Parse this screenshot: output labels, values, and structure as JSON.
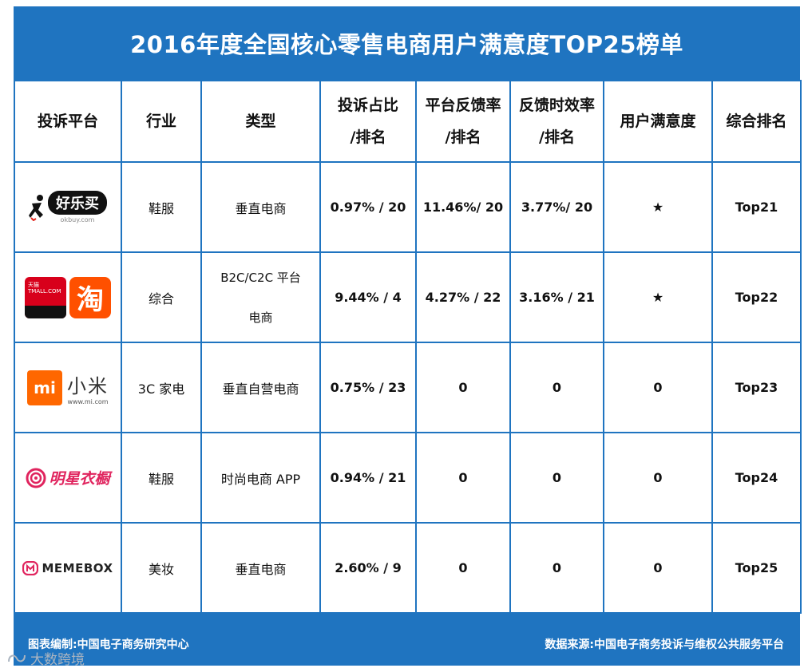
{
  "title": "2016年度全国核心零售电商用户满意度TOP25榜单",
  "headers": {
    "platform": "投诉平台",
    "industry": "行业",
    "type": "类型",
    "complaint_l1": "投诉占比",
    "complaint_l2": "/排名",
    "feedback_l1": "平台反馈率",
    "feedback_l2": "/排名",
    "timeliness_l1": "反馈时效率",
    "timeliness_l2": "/排名",
    "satisfaction": "用户满意度",
    "rank": "综合排名"
  },
  "rows": [
    {
      "logo_text": "好乐买",
      "logo_sub": "okbuy.com",
      "industry": "鞋服",
      "type": "垂直电商",
      "complaint": "0.97% /  20",
      "feedback": "11.46%/ 20",
      "timeliness": "3.77%/  20",
      "satisfaction": "★",
      "rank": "Top21"
    },
    {
      "logo_text": "淘",
      "logo_sub": "天猫 TMALL.COM",
      "industry": "综合",
      "type_l1": "B2C/C2C 平台",
      "type_l2": "电商",
      "complaint": "9.44%  /  4",
      "feedback": "4.27% / 22",
      "timeliness": "3.16% / 21",
      "satisfaction": "★",
      "rank": "Top22"
    },
    {
      "logo_text": "小米",
      "logo_mark": "mi",
      "logo_sub": "www.mi.com",
      "industry": "3C 家电",
      "type": "垂直自营电商",
      "complaint": "0.75% / 23",
      "feedback": "0",
      "timeliness": "0",
      "satisfaction": "0",
      "rank": "Top23"
    },
    {
      "logo_text": "明星衣橱",
      "industry": "鞋服",
      "type": "时尚电商 APP",
      "complaint": "0.94% / 21",
      "feedback": "0",
      "timeliness": "0",
      "satisfaction": "0",
      "rank": "Top24"
    },
    {
      "logo_text": "MEMEBOX",
      "industry": "美妆",
      "type": "垂直电商",
      "complaint": "2.60% /  9",
      "feedback": "0",
      "timeliness": "0",
      "satisfaction": "0",
      "rank": "Top25"
    }
  ],
  "footer": {
    "left": "图表编制:中国电子商务研究中心",
    "right": "数据来源:中国电子商务投诉与维权公共服务平台"
  },
  "watermark": "大数跨境",
  "colors": {
    "frame": "#1f74c0",
    "taobao": "#ff5000",
    "mi": "#ff6700",
    "memebox": "#e0245e"
  }
}
